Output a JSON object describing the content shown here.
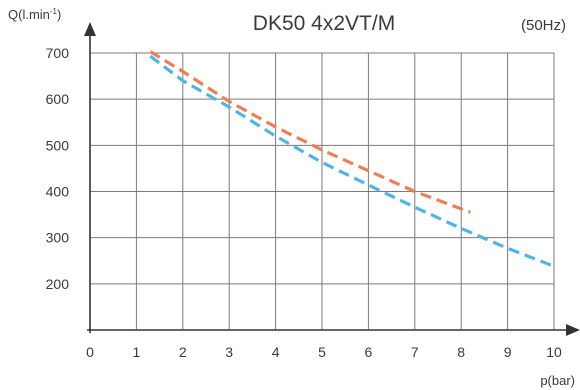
{
  "chart_data": {
    "type": "line",
    "title": "DK50 4x2VT/M",
    "subtitle": "(50Hz)",
    "xlabel": "p(bar)",
    "ylabel": "Q(l.min",
    "ylabel_sup": "-1",
    "ylabel_close": ")",
    "xlim": [
      0,
      10
    ],
    "ylim": [
      100,
      700
    ],
    "x_ticks": [
      0,
      1,
      2,
      3,
      4,
      5,
      6,
      7,
      8,
      9,
      10
    ],
    "y_ticks": [
      200,
      300,
      400,
      500,
      600,
      700
    ],
    "grid": true,
    "legend": "none",
    "series": [
      {
        "color": "#ee7f55",
        "x": [
          1.3,
          2,
          3,
          4,
          5,
          6,
          7,
          8.2
        ],
        "y": [
          703,
          660,
          595,
          540,
          490,
          445,
          400,
          355
        ]
      },
      {
        "color": "#4fb6e4",
        "x": [
          1.3,
          2,
          3,
          4,
          5,
          6,
          7,
          8,
          9,
          10
        ],
        "y": [
          693,
          640,
          583,
          520,
          463,
          414,
          366,
          320,
          277,
          238
        ]
      }
    ]
  }
}
